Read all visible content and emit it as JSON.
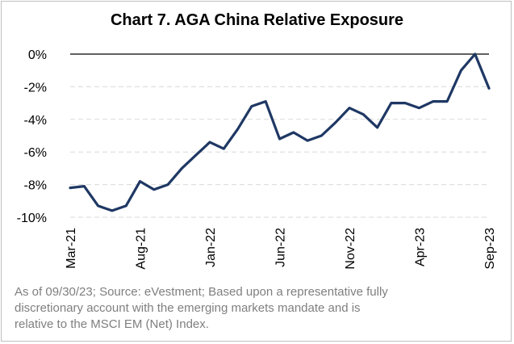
{
  "chart_data": {
    "type": "line",
    "title": "Chart 7. AGA China Relative Exposure",
    "xlabel": "",
    "ylabel": "",
    "ylim": [
      -10,
      0
    ],
    "y_ticks": [
      "0%",
      "-2%",
      "-4%",
      "-6%",
      "-8%",
      "-10%"
    ],
    "y_tick_values": [
      0,
      -2,
      -4,
      -6,
      -8,
      -10
    ],
    "x_tick_labels": [
      "Mar-21",
      "Aug-21",
      "Jan-22",
      "Jun-22",
      "Nov-22",
      "Apr-23",
      "Sep-23"
    ],
    "x_tick_index": [
      0,
      5,
      10,
      15,
      20,
      25,
      30
    ],
    "grid": true,
    "series": [
      {
        "color": "#1f3864",
        "x": [
          "Mar-21",
          "Apr-21",
          "May-21",
          "Jun-21",
          "Jul-21",
          "Aug-21",
          "Sep-21",
          "Oct-21",
          "Nov-21",
          "Dec-21",
          "Jan-22",
          "Feb-22",
          "Mar-22",
          "Apr-22",
          "May-22",
          "Jun-22",
          "Jul-22",
          "Aug-22",
          "Sep-22",
          "Oct-22",
          "Nov-22",
          "Dec-22",
          "Jan-23",
          "Feb-23",
          "Mar-23",
          "Apr-23",
          "May-23",
          "Jun-23",
          "Jul-23",
          "Aug-23",
          "Sep-23"
        ],
        "values": [
          -8.2,
          -8.1,
          -9.3,
          -9.6,
          -9.3,
          -7.8,
          -8.3,
          -8.0,
          -7.0,
          -6.2,
          -5.4,
          -5.8,
          -4.6,
          -3.2,
          -2.9,
          -5.2,
          -4.8,
          -5.3,
          -5.0,
          -4.2,
          -3.3,
          -3.7,
          -4.5,
          -3.0,
          -3.0,
          -3.3,
          -2.9,
          -2.9,
          -1.0,
          0.0,
          -2.1
        ]
      }
    ]
  },
  "footnote": {
    "line1": "As of 09/30/23; Source: eVestment; Based upon a representative fully",
    "line2": "discretionary account with the emerging markets mandate and is",
    "line3": "relative to the MSCI EM (Net) Index."
  },
  "colors": {
    "line": "#1f3864",
    "grid": "#d9d9d9",
    "zero_line": "#000000",
    "footnote": "#7f7f7f"
  }
}
